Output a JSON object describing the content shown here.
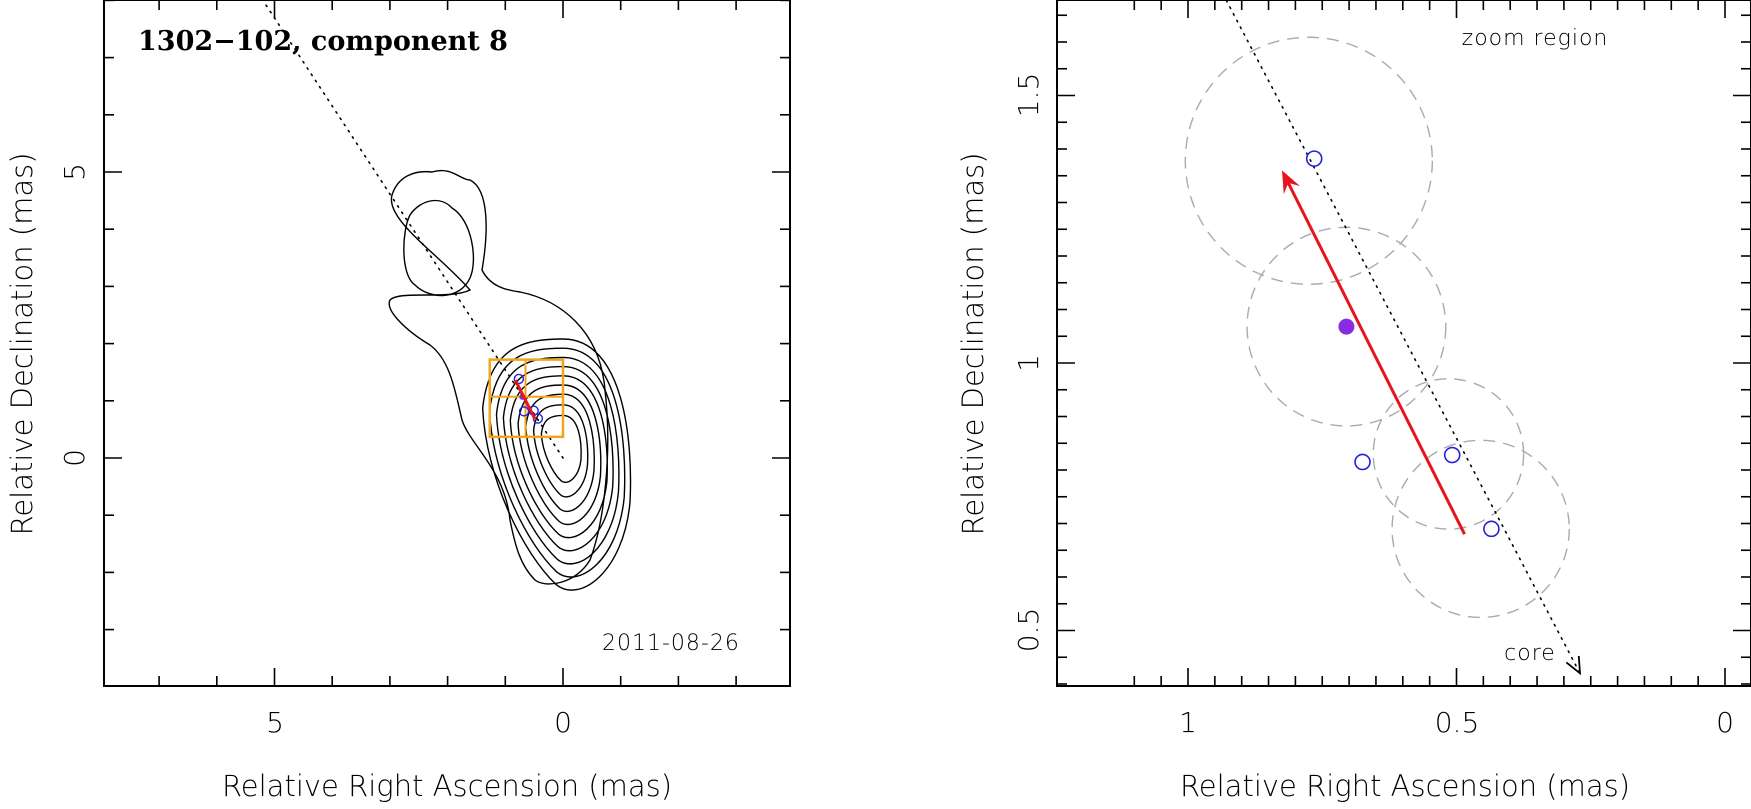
{
  "figure": {
    "left_title": "1302−102, component 8",
    "left_date": "2011-08-26",
    "right_annotation": "zoom region",
    "core_label": "core"
  },
  "colors": {
    "vector": "#e8141b",
    "epochs": "#2222dd",
    "mean_point": "#8a2be2",
    "zoom_box": "#f2a51a",
    "circles": "#aaaaaa"
  },
  "chart_data": [
    {
      "type": "scatter",
      "panel": "left",
      "title": "1302−102, component 8",
      "annotation": "2011-08-26",
      "xlabel": "Relative Right Ascension (mas)",
      "ylabel": "Relative Declination (mas)",
      "xlim": [
        8,
        -4
      ],
      "ylim": [
        -4,
        8
      ],
      "xticks": [
        5,
        0
      ],
      "yticks": [
        0,
        5
      ],
      "xtick_labels": [
        "5",
        "0"
      ],
      "ytick_labels": [
        "0",
        "5"
      ],
      "zoom_box": {
        "x": [
          1.27,
          0.0
        ],
        "y": [
          0.37,
          1.72
        ],
        "grid_x": [
          0.65
        ],
        "grid_y": [
          1.07
        ]
      },
      "trajectory_line": {
        "from": [
          0.0,
          0.0
        ],
        "to": [
          5.2,
          8.0
        ]
      },
      "contours": "ten nested contour levels of the source brightness, core near (0, 0), secondary lobe near (2.5, 3.5)"
    },
    {
      "type": "scatter",
      "panel": "right",
      "annotation": "zoom region",
      "core_label": "core",
      "xlabel": "Relative Right Ascension (mas)",
      "ylabel": "Relative Declination (mas)",
      "xlim": [
        1.2,
        -0.02
      ],
      "ylim": [
        0.4,
        1.7
      ],
      "xticks": [
        1,
        0.5,
        0
      ],
      "yticks": [
        0.5,
        1,
        1.5
      ],
      "xtick_labels": [
        "1",
        "0.5",
        "0"
      ],
      "ytick_labels": [
        "0.5",
        "1",
        "1.5"
      ],
      "epoch_points": [
        {
          "x": 0.765,
          "y": 1.382
        },
        {
          "x": 0.675,
          "y": 0.815
        },
        {
          "x": 0.508,
          "y": 0.828
        },
        {
          "x": 0.435,
          "y": 0.69
        }
      ],
      "mean_point": {
        "x": 0.705,
        "y": 1.068
      },
      "error_circles": [
        {
          "x": 0.775,
          "y": 1.378,
          "r": 0.23
        },
        {
          "x": 0.705,
          "y": 1.068,
          "r": 0.185
        },
        {
          "x": 0.515,
          "y": 0.83,
          "r": 0.14
        },
        {
          "x": 0.455,
          "y": 0.69,
          "r": 0.165
        }
      ],
      "velocity_vector": {
        "from": [
          0.485,
          0.68
        ],
        "to": [
          0.825,
          1.36
        ]
      },
      "trajectory_line": {
        "from": [
          0.935,
          1.69
        ],
        "to": [
          0.27,
          0.42
        ]
      }
    }
  ]
}
